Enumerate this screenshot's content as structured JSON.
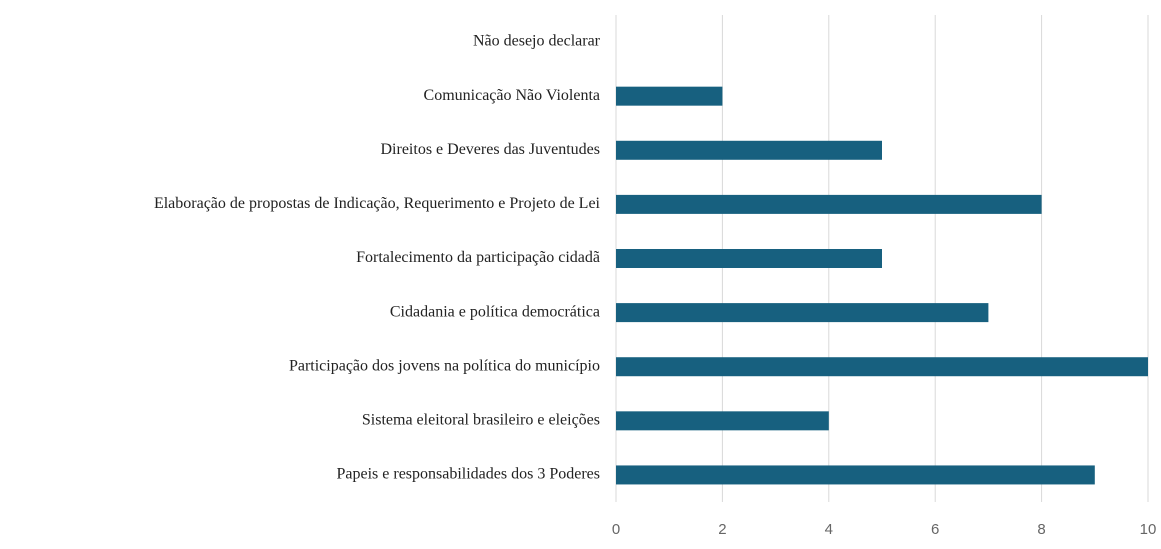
{
  "chart_data": {
    "type": "bar",
    "orientation": "horizontal",
    "categories": [
      "Não desejo declarar",
      "Comunicação Não Violenta",
      "Direitos e Deveres das Juventudes",
      "Elaboração de propostas de Indicação, Requerimento e Projeto de Lei",
      "Fortalecimento da participação cidadã",
      "Cidadania e política democrática",
      "Participação dos jovens na política do município",
      "Sistema eleitoral brasileiro e eleições",
      "Papeis e responsabilidades dos 3 Poderes"
    ],
    "values": [
      0,
      2,
      5,
      8,
      5,
      7,
      10,
      4,
      9
    ],
    "color": "#17607f",
    "xlim": [
      0,
      10
    ],
    "xticks": [
      0,
      2,
      4,
      6,
      8,
      10
    ],
    "grid": true
  }
}
